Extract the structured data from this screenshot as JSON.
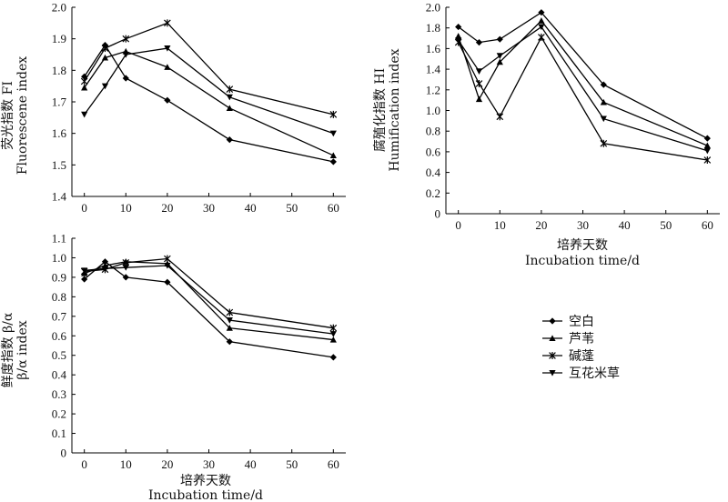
{
  "chart_data": [
    {
      "type": "line",
      "ylabel_cn": "荧光指数 FI",
      "ylabel_en": "Fluorescene index",
      "xlabel_cn": "",
      "xlabel_en": "",
      "x": [
        0,
        5,
        10,
        20,
        35,
        60
      ],
      "xticks": [
        "0",
        "10",
        "20",
        "30",
        "40",
        "50",
        "60"
      ],
      "yticks": [
        "1.4",
        "1.5",
        "1.6",
        "1.7",
        "1.8",
        "1.9",
        "2.0"
      ],
      "xlim": [
        -3,
        63
      ],
      "ylim": [
        1.4,
        2.0
      ],
      "series": [
        {
          "name": "空白",
          "marker": "diamond",
          "values": [
            1.78,
            1.88,
            1.775,
            1.705,
            1.58,
            1.51
          ]
        },
        {
          "name": "芦苇",
          "marker": "triangle-up",
          "values": [
            1.745,
            1.84,
            1.86,
            1.81,
            1.68,
            1.53
          ]
        },
        {
          "name": "碱蓬",
          "marker": "star",
          "values": [
            1.765,
            1.87,
            1.9,
            1.95,
            1.74,
            1.66
          ]
        },
        {
          "name": "互花米草",
          "marker": "triangle-down",
          "values": [
            1.66,
            1.75,
            1.85,
            1.87,
            1.715,
            1.6
          ]
        }
      ]
    },
    {
      "type": "line",
      "ylabel_cn": "腐殖化指数 HI",
      "ylabel_en": "Humification index",
      "xlabel_cn": "培养天数",
      "xlabel_en": "Incubation time/d",
      "x": [
        0,
        5,
        10,
        20,
        35,
        60
      ],
      "xticks": [
        "0",
        "10",
        "20",
        "30",
        "40",
        "50",
        "60"
      ],
      "yticks": [
        "0",
        "0.2",
        "0.4",
        "0.6",
        "0.8",
        "1.0",
        "1.2",
        "1.4",
        "1.6",
        "1.8",
        "2.0"
      ],
      "xlim": [
        -3,
        63
      ],
      "ylim": [
        0,
        2.0
      ],
      "series": [
        {
          "name": "空白",
          "marker": "diamond",
          "values": [
            1.81,
            1.66,
            1.69,
            1.95,
            1.25,
            0.73
          ]
        },
        {
          "name": "芦苇",
          "marker": "triangle-up",
          "values": [
            1.72,
            1.11,
            1.47,
            1.87,
            1.08,
            0.66
          ]
        },
        {
          "name": "碱蓬",
          "marker": "star",
          "values": [
            1.66,
            1.26,
            0.94,
            1.71,
            0.68,
            0.52
          ]
        },
        {
          "name": "互花米草",
          "marker": "triangle-down",
          "values": [
            1.68,
            1.38,
            1.53,
            1.81,
            0.92,
            0.61
          ]
        }
      ]
    },
    {
      "type": "line",
      "ylabel_cn": "鲜度指数 β/α",
      "ylabel_en": "β/α index",
      "xlabel_cn": "培养天数",
      "xlabel_en": "Incubation time/d",
      "x": [
        0,
        5,
        10,
        20,
        35,
        60
      ],
      "xticks": [
        "0",
        "10",
        "20",
        "30",
        "40",
        "50",
        "60"
      ],
      "yticks": [
        "0",
        "0.1",
        "0.2",
        "0.3",
        "0.4",
        "0.5",
        "0.6",
        "0.7",
        "0.8",
        "0.9",
        "1.0",
        "1.1"
      ],
      "xlim": [
        -3,
        63
      ],
      "ylim": [
        0,
        1.1
      ],
      "series": [
        {
          "name": "空白",
          "marker": "diamond",
          "values": [
            0.89,
            0.98,
            0.9,
            0.875,
            0.57,
            0.49
          ]
        },
        {
          "name": "芦苇",
          "marker": "triangle-up",
          "values": [
            0.92,
            0.96,
            0.98,
            0.97,
            0.64,
            0.58
          ]
        },
        {
          "name": "碱蓬",
          "marker": "star",
          "values": [
            0.93,
            0.94,
            0.975,
            0.995,
            0.72,
            0.64
          ]
        },
        {
          "name": "互花米草",
          "marker": "triangle-down",
          "values": [
            0.935,
            0.945,
            0.95,
            0.96,
            0.68,
            0.61
          ]
        }
      ]
    }
  ],
  "legend": {
    "placement": "bottom-right",
    "items": [
      "空白",
      "芦苇",
      "碱蓬",
      "互花米草"
    ]
  }
}
